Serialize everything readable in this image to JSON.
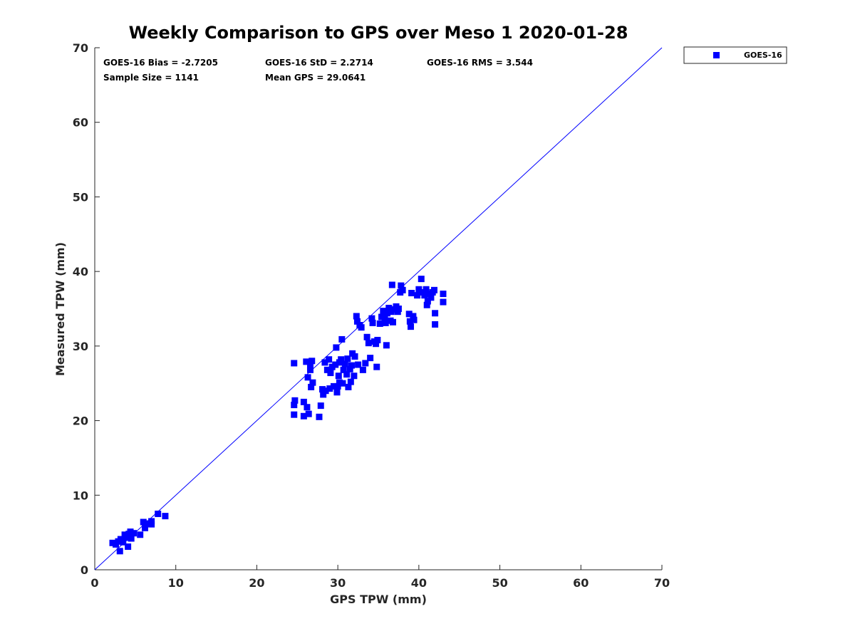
{
  "chart_data": {
    "type": "scatter",
    "title": "Weekly Comparison to GPS over Meso 1 2020-01-28",
    "xlabel": "GPS TPW (mm)",
    "ylabel": "Measured TPW (mm)",
    "xlim": [
      0,
      70
    ],
    "ylim": [
      0,
      70
    ],
    "xticks": [
      "0",
      "10",
      "20",
      "30",
      "40",
      "50",
      "60",
      "70"
    ],
    "yticks": [
      "0",
      "10",
      "20",
      "30",
      "40",
      "50",
      "60",
      "70"
    ],
    "grid": false,
    "legend_position": "outside-top-right",
    "reference_line": {
      "x": [
        0,
        70
      ],
      "y": [
        0,
        70
      ],
      "color": "#0000ff"
    },
    "stats": {
      "row1": [
        "GOES-16 Bias = -2.7205",
        "GOES-16 StD = 2.2714",
        "GOES-16 RMS = 3.544"
      ],
      "row2": [
        "Sample Size = 1141",
        "Mean GPS = 29.0641"
      ]
    },
    "series": [
      {
        "name": "GOES-16",
        "color": "#0000ff",
        "marker": "square",
        "points": [
          [
            2.2,
            3.6
          ],
          [
            2.6,
            3.4
          ],
          [
            2.9,
            3.8
          ],
          [
            3.1,
            2.5
          ],
          [
            3.2,
            4.1
          ],
          [
            3.5,
            3.7
          ],
          [
            3.7,
            4.7
          ],
          [
            3.9,
            4.3
          ],
          [
            4.1,
            3.1
          ],
          [
            4.2,
            4.8
          ],
          [
            4.4,
            5.1
          ],
          [
            4.5,
            4.2
          ],
          [
            4.8,
            4.9
          ],
          [
            5.6,
            4.7
          ],
          [
            6.0,
            6.4
          ],
          [
            6.2,
            5.6
          ],
          [
            6.6,
            6.2
          ],
          [
            7.0,
            6.5
          ],
          [
            7.0,
            6.1
          ],
          [
            7.8,
            7.5
          ],
          [
            8.7,
            7.2
          ],
          [
            24.6,
            27.7
          ],
          [
            24.7,
            22.7
          ],
          [
            24.6,
            22.1
          ],
          [
            24.6,
            20.8
          ],
          [
            25.8,
            22.5
          ],
          [
            25.8,
            20.6
          ],
          [
            26.1,
            27.9
          ],
          [
            26.2,
            21.8
          ],
          [
            26.3,
            25.8
          ],
          [
            26.4,
            20.9
          ],
          [
            26.6,
            27.3
          ],
          [
            26.6,
            26.8
          ],
          [
            26.7,
            24.5
          ],
          [
            26.9,
            25.1
          ],
          [
            26.8,
            28.0
          ],
          [
            27.7,
            20.5
          ],
          [
            27.9,
            22.0
          ],
          [
            28.1,
            24.2
          ],
          [
            28.2,
            23.5
          ],
          [
            28.4,
            27.8
          ],
          [
            28.5,
            24.0
          ],
          [
            28.7,
            26.8
          ],
          [
            28.9,
            28.2
          ],
          [
            29.0,
            24.3
          ],
          [
            29.1,
            26.4
          ],
          [
            29.3,
            27.2
          ],
          [
            29.5,
            24.6
          ],
          [
            29.7,
            27.5
          ],
          [
            29.8,
            29.8
          ],
          [
            29.9,
            23.8
          ],
          [
            30.0,
            24.6
          ],
          [
            30.1,
            26.0
          ],
          [
            30.2,
            25.1
          ],
          [
            30.2,
            27.8
          ],
          [
            30.4,
            28.2
          ],
          [
            30.5,
            30.9
          ],
          [
            30.6,
            25.0
          ],
          [
            30.7,
            26.8
          ],
          [
            30.9,
            27.6
          ],
          [
            31.1,
            26.2
          ],
          [
            31.2,
            28.3
          ],
          [
            31.3,
            24.5
          ],
          [
            31.5,
            26.9
          ],
          [
            31.6,
            25.2
          ],
          [
            31.7,
            27.4
          ],
          [
            31.8,
            29.0
          ],
          [
            32.0,
            26.0
          ],
          [
            32.1,
            28.6
          ],
          [
            32.3,
            34.0
          ],
          [
            32.4,
            33.3
          ],
          [
            32.5,
            27.5
          ],
          [
            32.7,
            32.8
          ],
          [
            32.9,
            32.5
          ],
          [
            33.1,
            26.8
          ],
          [
            33.4,
            27.7
          ],
          [
            33.6,
            31.2
          ],
          [
            33.8,
            30.4
          ],
          [
            34.0,
            28.4
          ],
          [
            34.2,
            33.7
          ],
          [
            34.3,
            33.1
          ],
          [
            34.5,
            30.6
          ],
          [
            34.7,
            30.3
          ],
          [
            34.8,
            27.2
          ],
          [
            34.9,
            30.8
          ],
          [
            35.2,
            33.0
          ],
          [
            35.4,
            33.9
          ],
          [
            35.6,
            34.7
          ],
          [
            35.8,
            33.6
          ],
          [
            35.9,
            33.1
          ],
          [
            36.0,
            30.1
          ],
          [
            36.1,
            34.4
          ],
          [
            36.3,
            35.1
          ],
          [
            36.5,
            33.4
          ],
          [
            36.6,
            34.6
          ],
          [
            36.7,
            38.2
          ],
          [
            36.8,
            33.2
          ],
          [
            37.0,
            34.9
          ],
          [
            37.2,
            35.3
          ],
          [
            37.4,
            34.6
          ],
          [
            37.5,
            35.0
          ],
          [
            37.7,
            37.2
          ],
          [
            37.8,
            38.1
          ],
          [
            38.0,
            37.5
          ],
          [
            38.8,
            34.3
          ],
          [
            38.9,
            33.3
          ],
          [
            39.0,
            32.6
          ],
          [
            39.1,
            37.1
          ],
          [
            39.3,
            34.0
          ],
          [
            39.4,
            33.5
          ],
          [
            39.8,
            36.8
          ],
          [
            40.0,
            37.6
          ],
          [
            40.3,
            39.0
          ],
          [
            40.5,
            37.2
          ],
          [
            40.7,
            36.8
          ],
          [
            40.9,
            37.6
          ],
          [
            41.0,
            35.5
          ],
          [
            41.1,
            36.0
          ],
          [
            41.3,
            37.0
          ],
          [
            41.5,
            36.5
          ],
          [
            41.7,
            37.2
          ],
          [
            41.9,
            37.5
          ],
          [
            42.0,
            34.4
          ],
          [
            42.0,
            32.9
          ],
          [
            43.0,
            37.0
          ],
          [
            43.0,
            35.9
          ]
        ]
      }
    ]
  }
}
